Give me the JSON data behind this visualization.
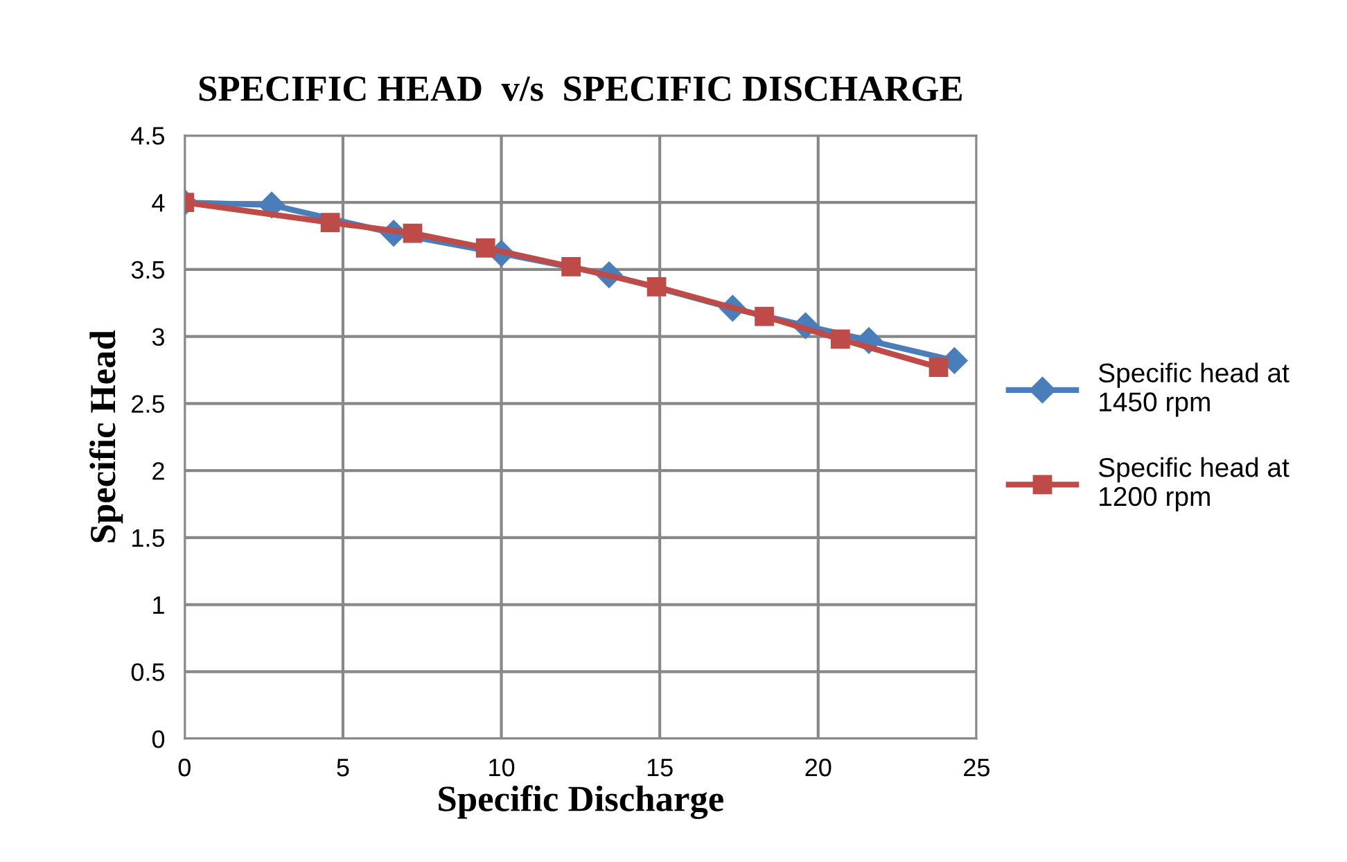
{
  "chart_data": {
    "type": "line",
    "title": "SPECIFIC HEAD  v/s  SPECIFIC DISCHARGE",
    "xlabel": "Specific Discharge",
    "ylabel": "Specific Head",
    "series": [
      {
        "name": "Specific head at 1450 rpm",
        "color": "#4a7ebb",
        "marker": "diamond",
        "x": [
          0,
          2.75,
          6.6,
          10.0,
          13.4,
          17.3,
          19.6,
          21.6,
          24.3
        ],
        "values": [
          4.0,
          3.98,
          3.77,
          3.62,
          3.46,
          3.21,
          3.08,
          2.97,
          2.82
        ]
      },
      {
        "name": "Specific head at 1200 rpm",
        "color": "#be4b48",
        "marker": "square",
        "x": [
          0,
          4.6,
          7.2,
          9.5,
          12.2,
          14.9,
          18.3,
          20.7,
          23.8
        ],
        "values": [
          4.0,
          3.85,
          3.77,
          3.66,
          3.52,
          3.37,
          3.15,
          2.98,
          2.77
        ]
      }
    ],
    "xlim": [
      0,
      25
    ],
    "xticks": [
      0,
      5,
      10,
      15,
      20,
      25
    ],
    "ylim": [
      0,
      4.5
    ],
    "yticks": [
      0,
      0.5,
      1,
      1.5,
      2,
      2.5,
      3,
      3.5,
      4,
      4.5
    ],
    "grid": true,
    "legend": "right"
  }
}
